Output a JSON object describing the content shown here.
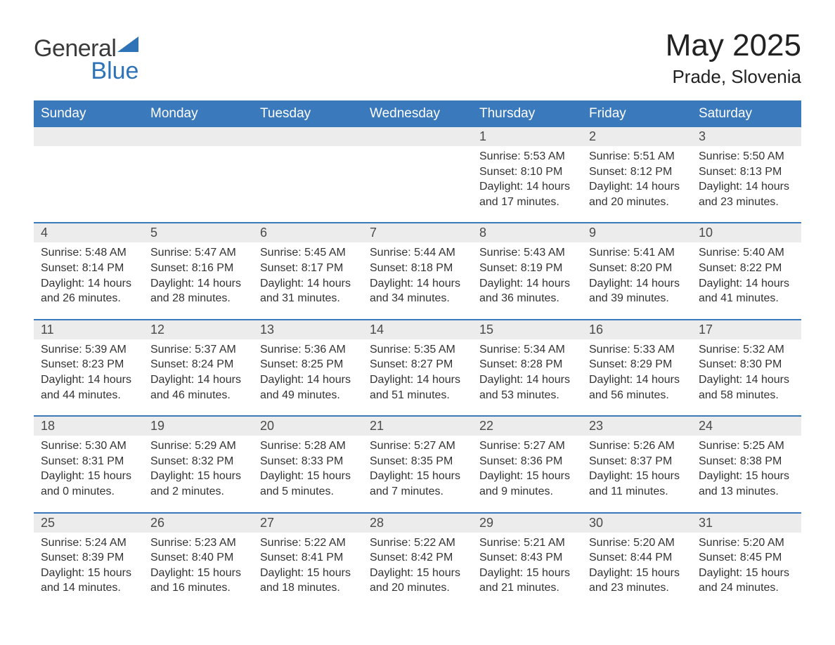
{
  "brand": {
    "word1": "General",
    "word2": "Blue"
  },
  "title": "May 2025",
  "location": "Prade, Slovenia",
  "colors": {
    "header_bg": "#3a79bb",
    "header_text": "#ffffff",
    "band_bg": "#ececec",
    "rule": "#3a79bb",
    "body_text": "#333333",
    "brand_gray": "#3a3a3a",
    "brand_blue": "#2e73b8",
    "page_bg": "#ffffff"
  },
  "typography": {
    "title_fontsize": 44,
    "location_fontsize": 26,
    "dow_fontsize": 19,
    "daynum_fontsize": 18,
    "body_fontsize": 16,
    "logo_fontsize": 34
  },
  "days_of_week": [
    "Sunday",
    "Monday",
    "Tuesday",
    "Wednesday",
    "Thursday",
    "Friday",
    "Saturday"
  ],
  "weeks": [
    [
      {
        "n": "",
        "sunrise": "",
        "sunset": "",
        "daylight": ""
      },
      {
        "n": "",
        "sunrise": "",
        "sunset": "",
        "daylight": ""
      },
      {
        "n": "",
        "sunrise": "",
        "sunset": "",
        "daylight": ""
      },
      {
        "n": "",
        "sunrise": "",
        "sunset": "",
        "daylight": ""
      },
      {
        "n": "1",
        "sunrise": "Sunrise: 5:53 AM",
        "sunset": "Sunset: 8:10 PM",
        "daylight": "Daylight: 14 hours and 17 minutes."
      },
      {
        "n": "2",
        "sunrise": "Sunrise: 5:51 AM",
        "sunset": "Sunset: 8:12 PM",
        "daylight": "Daylight: 14 hours and 20 minutes."
      },
      {
        "n": "3",
        "sunrise": "Sunrise: 5:50 AM",
        "sunset": "Sunset: 8:13 PM",
        "daylight": "Daylight: 14 hours and 23 minutes."
      }
    ],
    [
      {
        "n": "4",
        "sunrise": "Sunrise: 5:48 AM",
        "sunset": "Sunset: 8:14 PM",
        "daylight": "Daylight: 14 hours and 26 minutes."
      },
      {
        "n": "5",
        "sunrise": "Sunrise: 5:47 AM",
        "sunset": "Sunset: 8:16 PM",
        "daylight": "Daylight: 14 hours and 28 minutes."
      },
      {
        "n": "6",
        "sunrise": "Sunrise: 5:45 AM",
        "sunset": "Sunset: 8:17 PM",
        "daylight": "Daylight: 14 hours and 31 minutes."
      },
      {
        "n": "7",
        "sunrise": "Sunrise: 5:44 AM",
        "sunset": "Sunset: 8:18 PM",
        "daylight": "Daylight: 14 hours and 34 minutes."
      },
      {
        "n": "8",
        "sunrise": "Sunrise: 5:43 AM",
        "sunset": "Sunset: 8:19 PM",
        "daylight": "Daylight: 14 hours and 36 minutes."
      },
      {
        "n": "9",
        "sunrise": "Sunrise: 5:41 AM",
        "sunset": "Sunset: 8:20 PM",
        "daylight": "Daylight: 14 hours and 39 minutes."
      },
      {
        "n": "10",
        "sunrise": "Sunrise: 5:40 AM",
        "sunset": "Sunset: 8:22 PM",
        "daylight": "Daylight: 14 hours and 41 minutes."
      }
    ],
    [
      {
        "n": "11",
        "sunrise": "Sunrise: 5:39 AM",
        "sunset": "Sunset: 8:23 PM",
        "daylight": "Daylight: 14 hours and 44 minutes."
      },
      {
        "n": "12",
        "sunrise": "Sunrise: 5:37 AM",
        "sunset": "Sunset: 8:24 PM",
        "daylight": "Daylight: 14 hours and 46 minutes."
      },
      {
        "n": "13",
        "sunrise": "Sunrise: 5:36 AM",
        "sunset": "Sunset: 8:25 PM",
        "daylight": "Daylight: 14 hours and 49 minutes."
      },
      {
        "n": "14",
        "sunrise": "Sunrise: 5:35 AM",
        "sunset": "Sunset: 8:27 PM",
        "daylight": "Daylight: 14 hours and 51 minutes."
      },
      {
        "n": "15",
        "sunrise": "Sunrise: 5:34 AM",
        "sunset": "Sunset: 8:28 PM",
        "daylight": "Daylight: 14 hours and 53 minutes."
      },
      {
        "n": "16",
        "sunrise": "Sunrise: 5:33 AM",
        "sunset": "Sunset: 8:29 PM",
        "daylight": "Daylight: 14 hours and 56 minutes."
      },
      {
        "n": "17",
        "sunrise": "Sunrise: 5:32 AM",
        "sunset": "Sunset: 8:30 PM",
        "daylight": "Daylight: 14 hours and 58 minutes."
      }
    ],
    [
      {
        "n": "18",
        "sunrise": "Sunrise: 5:30 AM",
        "sunset": "Sunset: 8:31 PM",
        "daylight": "Daylight: 15 hours and 0 minutes."
      },
      {
        "n": "19",
        "sunrise": "Sunrise: 5:29 AM",
        "sunset": "Sunset: 8:32 PM",
        "daylight": "Daylight: 15 hours and 2 minutes."
      },
      {
        "n": "20",
        "sunrise": "Sunrise: 5:28 AM",
        "sunset": "Sunset: 8:33 PM",
        "daylight": "Daylight: 15 hours and 5 minutes."
      },
      {
        "n": "21",
        "sunrise": "Sunrise: 5:27 AM",
        "sunset": "Sunset: 8:35 PM",
        "daylight": "Daylight: 15 hours and 7 minutes."
      },
      {
        "n": "22",
        "sunrise": "Sunrise: 5:27 AM",
        "sunset": "Sunset: 8:36 PM",
        "daylight": "Daylight: 15 hours and 9 minutes."
      },
      {
        "n": "23",
        "sunrise": "Sunrise: 5:26 AM",
        "sunset": "Sunset: 8:37 PM",
        "daylight": "Daylight: 15 hours and 11 minutes."
      },
      {
        "n": "24",
        "sunrise": "Sunrise: 5:25 AM",
        "sunset": "Sunset: 8:38 PM",
        "daylight": "Daylight: 15 hours and 13 minutes."
      }
    ],
    [
      {
        "n": "25",
        "sunrise": "Sunrise: 5:24 AM",
        "sunset": "Sunset: 8:39 PM",
        "daylight": "Daylight: 15 hours and 14 minutes."
      },
      {
        "n": "26",
        "sunrise": "Sunrise: 5:23 AM",
        "sunset": "Sunset: 8:40 PM",
        "daylight": "Daylight: 15 hours and 16 minutes."
      },
      {
        "n": "27",
        "sunrise": "Sunrise: 5:22 AM",
        "sunset": "Sunset: 8:41 PM",
        "daylight": "Daylight: 15 hours and 18 minutes."
      },
      {
        "n": "28",
        "sunrise": "Sunrise: 5:22 AM",
        "sunset": "Sunset: 8:42 PM",
        "daylight": "Daylight: 15 hours and 20 minutes."
      },
      {
        "n": "29",
        "sunrise": "Sunrise: 5:21 AM",
        "sunset": "Sunset: 8:43 PM",
        "daylight": "Daylight: 15 hours and 21 minutes."
      },
      {
        "n": "30",
        "sunrise": "Sunrise: 5:20 AM",
        "sunset": "Sunset: 8:44 PM",
        "daylight": "Daylight: 15 hours and 23 minutes."
      },
      {
        "n": "31",
        "sunrise": "Sunrise: 5:20 AM",
        "sunset": "Sunset: 8:45 PM",
        "daylight": "Daylight: 15 hours and 24 minutes."
      }
    ]
  ]
}
